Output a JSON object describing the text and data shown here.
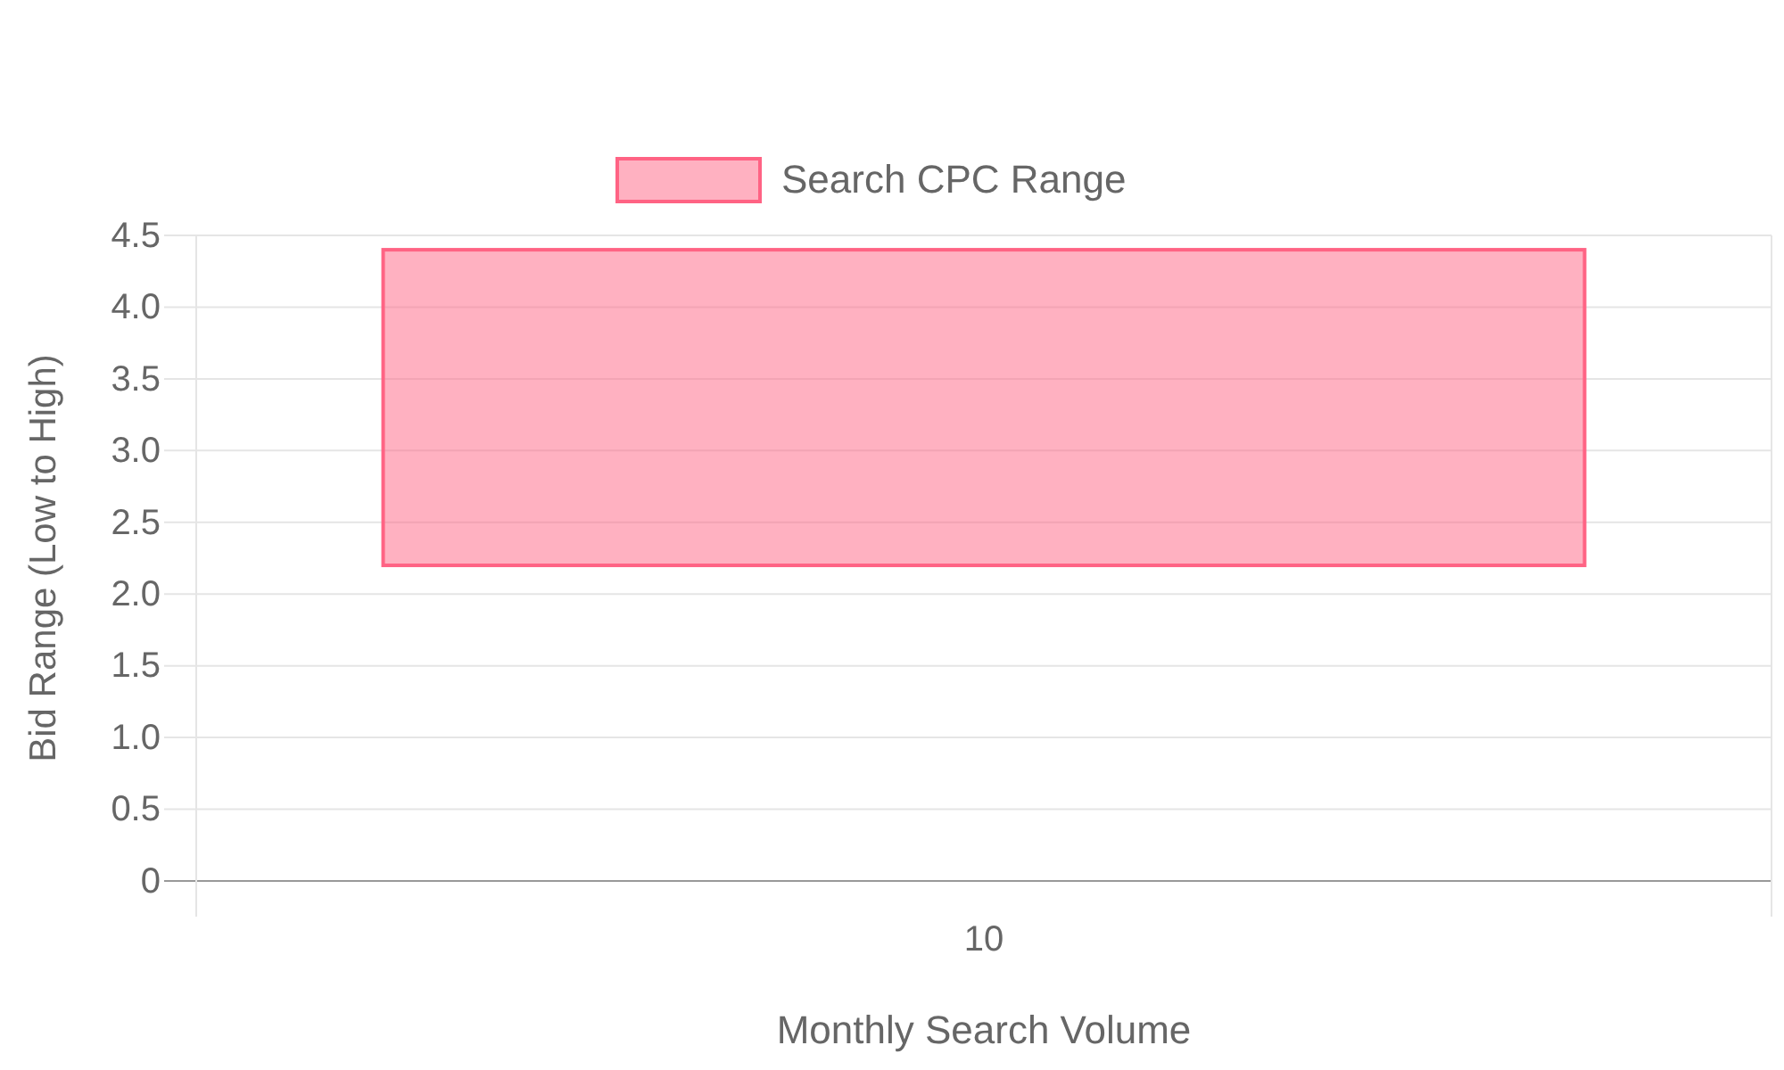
{
  "chart_data": {
    "type": "bar",
    "xlabel": "Monthly Search Volume",
    "ylabel": "Bid Range (Low to High)",
    "categories": [
      "10"
    ],
    "series": [
      {
        "name": "Search CPC Range",
        "color": "#ff6384",
        "values": [
          2.2
        ],
        "base": [
          2.2
        ]
      }
    ],
    "ylim": [
      0,
      4.5
    ],
    "yticks": [
      0,
      {
        "value": 0.5,
        "label": "0.5"
      },
      {
        "value": 1,
        "label": "1.0"
      },
      {
        "value": 1.5,
        "label": "1.5"
      },
      {
        "value": 2,
        "label": "2.0"
      },
      {
        "value": 2.5,
        "label": "2.5"
      },
      {
        "value": 3,
        "label": "3.0"
      },
      {
        "value": 3.5,
        "label": "3.5"
      },
      {
        "value": 4,
        "label": "4.0"
      },
      {
        "value": 4.5,
        "label": "4.5"
      }
    ],
    "grid": true,
    "legend": "top"
  }
}
